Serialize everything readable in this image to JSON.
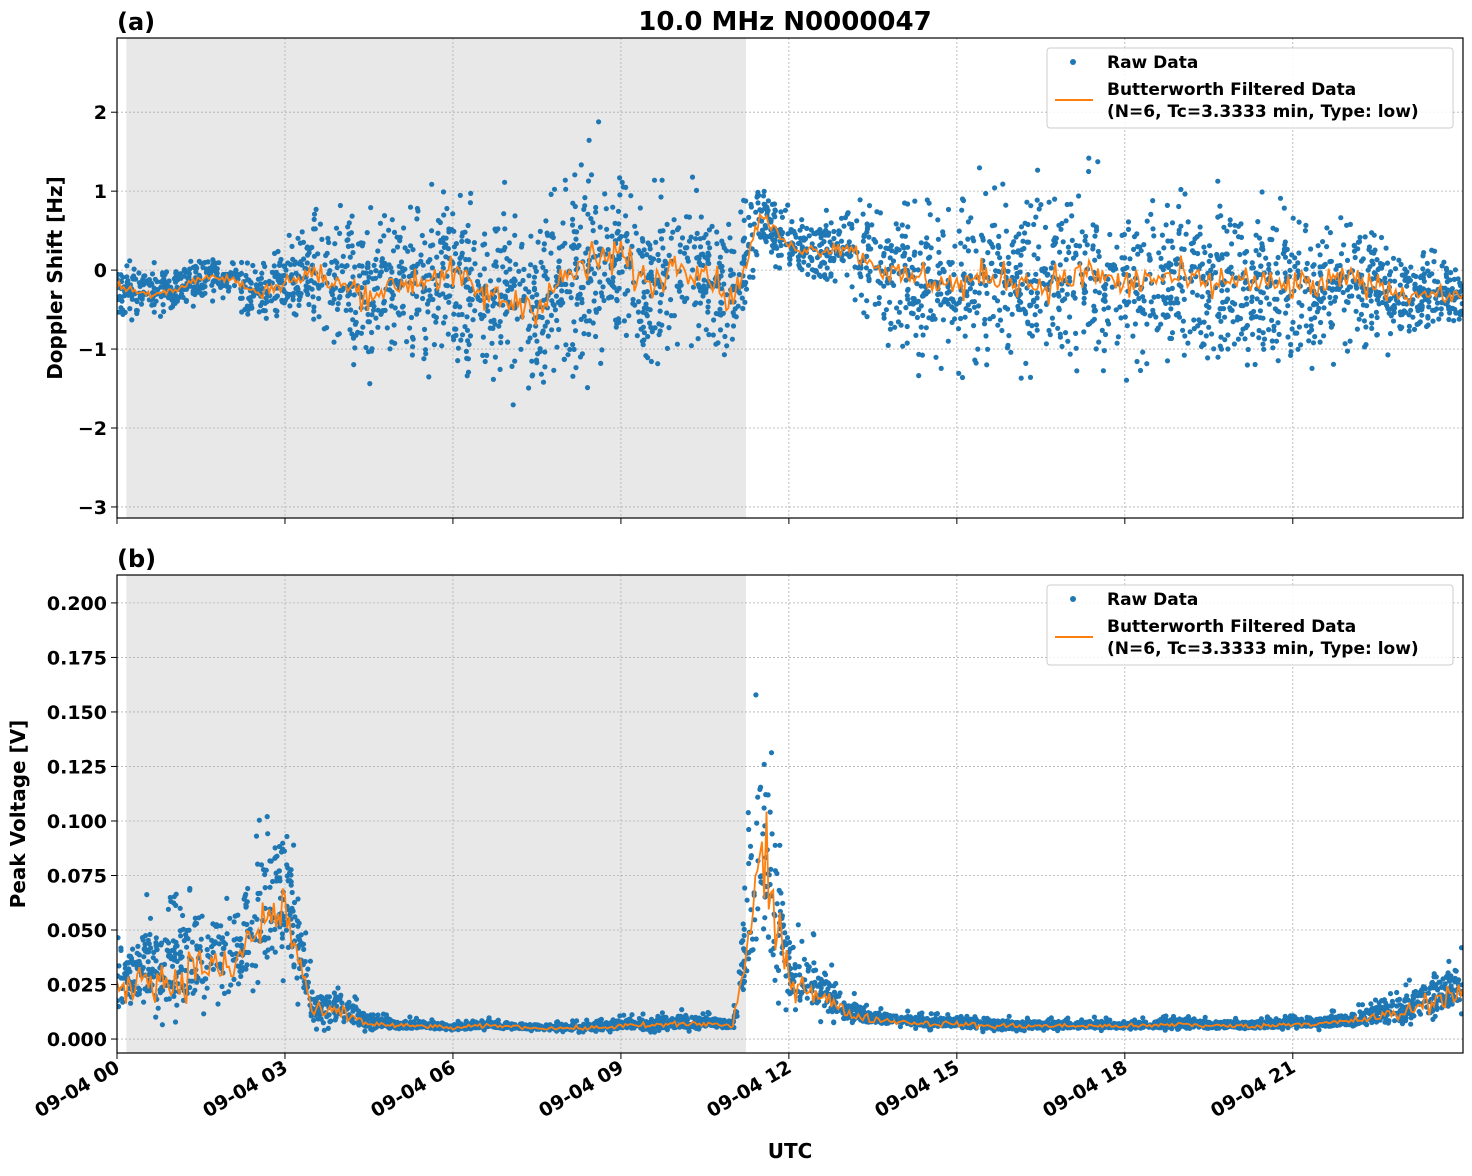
{
  "figure": {
    "title": "10.0 MHz N0000047",
    "xlabel": "UTC"
  },
  "colors": {
    "raw": "#1f77b4",
    "filtered": "#ff7f0e",
    "shade": "#e8e8e8",
    "grid": "#b0b0b0"
  },
  "chart_data": [
    {
      "type": "scatter",
      "panel_label": "(a)",
      "ylabel": "Doppler Shift [Hz]",
      "xlim_hours": [
        0,
        24.04
      ],
      "ylim": [
        -3.14,
        2.94
      ],
      "grid": true,
      "legend_placement": "top-right",
      "x_ticks": [
        "09-04 00",
        "09-04 03",
        "09-04 06",
        "09-04 09",
        "09-04 12",
        "09-04 15",
        "09-04 18",
        "09-04 21"
      ],
      "y_ticks": [
        "−3",
        "−2",
        "−1",
        "0",
        "1",
        "2"
      ],
      "y_tick_values": [
        -3,
        -2,
        -1,
        0,
        1,
        2
      ],
      "shaded_interval_utc": [
        "09-04 00:10",
        "09-04 11:14"
      ],
      "legend": [
        "Raw Data",
        "Butterworth Filtered Data",
        "(N=6, Tc=3.3333 min, Type: low)"
      ],
      "x_hours": [
        0,
        0.5,
        1,
        1.5,
        2,
        2.5,
        3,
        3.5,
        4,
        4.5,
        5,
        5.5,
        6,
        6.5,
        7,
        7.5,
        8,
        8.5,
        9,
        9.5,
        10,
        10.5,
        11,
        11.5,
        12,
        12.5,
        13,
        13.5,
        14,
        14.5,
        15,
        15.5,
        16,
        16.5,
        17,
        17.5,
        18,
        18.5,
        19,
        19.5,
        20,
        20.5,
        21,
        21.5,
        22,
        22.5,
        23,
        23.5,
        24
      ],
      "series": [
        {
          "name": "Butterworth Filtered Data",
          "values": [
            -0.2,
            -0.3,
            -0.25,
            -0.1,
            -0.1,
            -0.3,
            -0.15,
            -0.05,
            -0.2,
            -0.3,
            -0.2,
            -0.1,
            -0.05,
            -0.3,
            -0.4,
            -0.45,
            -0.1,
            0.1,
            0.2,
            -0.2,
            0.1,
            0.0,
            -0.4,
            0.7,
            0.3,
            0.25,
            0.3,
            0.1,
            -0.1,
            -0.1,
            -0.2,
            -0.1,
            -0.1,
            -0.2,
            -0.1,
            -0.05,
            -0.2,
            -0.1,
            -0.1,
            -0.2,
            -0.1,
            -0.2,
            -0.2,
            -0.2,
            -0.1,
            -0.2,
            -0.3,
            -0.3,
            -0.35
          ]
        },
        {
          "name": "Raw Data",
          "spread": [
            0.4,
            0.4,
            0.35,
            0.35,
            0.35,
            0.4,
            0.6,
            1.0,
            1.0,
            1.1,
            1.1,
            1.2,
            1.2,
            1.2,
            1.3,
            1.3,
            1.4,
            1.5,
            1.4,
            1.3,
            1.2,
            1.1,
            1.1,
            0.5,
            0.45,
            0.45,
            0.6,
            1.0,
            1.1,
            1.2,
            1.3,
            1.3,
            1.2,
            1.3,
            1.3,
            1.3,
            1.2,
            1.2,
            1.2,
            1.2,
            1.2,
            1.2,
            1.2,
            1.1,
            1.0,
            0.9,
            0.7,
            0.6,
            0.5
          ]
        }
      ]
    },
    {
      "type": "scatter",
      "panel_label": "(b)",
      "ylabel": "Peak Voltage [V]",
      "xlim_hours": [
        0,
        24.04
      ],
      "ylim": [
        -0.0064,
        0.2128
      ],
      "grid": true,
      "legend_placement": "top-right",
      "x_ticks": [
        "09-04 00",
        "09-04 03",
        "09-04 06",
        "09-04 09",
        "09-04 12",
        "09-04 15",
        "09-04 18",
        "09-04 21"
      ],
      "y_ticks": [
        "0.000",
        "0.025",
        "0.050",
        "0.075",
        "0.100",
        "0.125",
        "0.150",
        "0.175",
        "0.200"
      ],
      "y_tick_values": [
        0,
        0.025,
        0.05,
        0.075,
        0.1,
        0.125,
        0.15,
        0.175,
        0.2
      ],
      "shaded_interval_utc": [
        "09-04 00:10",
        "09-04 11:14"
      ],
      "legend": [
        "Raw Data",
        "Butterworth Filtered Data",
        "(N=6, Tc=3.3333 min, Type: low)"
      ],
      "x_hours": [
        0,
        0.5,
        1,
        1.5,
        2,
        2.5,
        3,
        3.5,
        4,
        4.5,
        5,
        5.5,
        6,
        6.5,
        7,
        7.5,
        8,
        8.5,
        9,
        9.5,
        10,
        10.5,
        11,
        11.5,
        12,
        12.5,
        13,
        13.5,
        14,
        14.5,
        15,
        15.5,
        16,
        16.5,
        17,
        17.5,
        18,
        18.5,
        19,
        19.5,
        20,
        20.5,
        21,
        21.5,
        22,
        22.5,
        23,
        23.5,
        24
      ],
      "series": [
        {
          "name": "Butterworth Filtered Data",
          "values": [
            0.02,
            0.03,
            0.025,
            0.035,
            0.03,
            0.05,
            0.06,
            0.012,
            0.012,
            0.007,
            0.006,
            0.006,
            0.005,
            0.006,
            0.006,
            0.005,
            0.005,
            0.005,
            0.006,
            0.006,
            0.007,
            0.007,
            0.006,
            0.08,
            0.028,
            0.022,
            0.012,
            0.009,
            0.008,
            0.007,
            0.007,
            0.006,
            0.006,
            0.006,
            0.006,
            0.006,
            0.006,
            0.006,
            0.007,
            0.006,
            0.006,
            0.006,
            0.007,
            0.007,
            0.008,
            0.01,
            0.012,
            0.018,
            0.022
          ]
        },
        {
          "name": "Raw Data",
          "spread": [
            0.025,
            0.035,
            0.04,
            0.045,
            0.035,
            0.06,
            0.06,
            0.015,
            0.015,
            0.006,
            0.004,
            0.004,
            0.003,
            0.004,
            0.003,
            0.003,
            0.003,
            0.004,
            0.005,
            0.006,
            0.007,
            0.006,
            0.004,
            0.11,
            0.03,
            0.025,
            0.012,
            0.006,
            0.005,
            0.005,
            0.005,
            0.005,
            0.005,
            0.004,
            0.004,
            0.004,
            0.004,
            0.004,
            0.005,
            0.004,
            0.004,
            0.004,
            0.004,
            0.005,
            0.006,
            0.01,
            0.014,
            0.02,
            0.02
          ]
        }
      ]
    }
  ]
}
